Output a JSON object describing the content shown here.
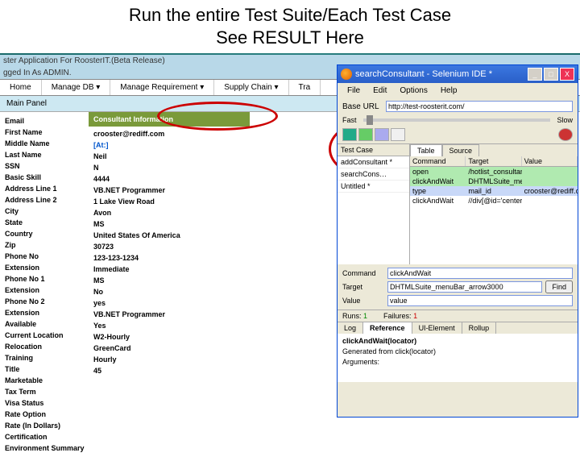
{
  "slide": {
    "title": "Run the entire Test Suite/Each Test Case",
    "subtitle": "See RESULT Here"
  },
  "app": {
    "header1": "ster Application For RoosterIT.(Beta Release)",
    "header2": "gged In As ADMIN.",
    "menu": [
      "Home",
      "Manage DB ▾",
      "Manage Requirement ▾",
      "Supply Chain ▾",
      "Tra"
    ],
    "panel_label": "Main Panel",
    "info_header": "Consultant Information",
    "fields": {
      "labels": [
        "Email",
        "",
        "First Name",
        "Middle Name",
        "Last Name",
        "SSN",
        "Basic Skill",
        "Address Line 1",
        "Address Line 2",
        "City",
        "State",
        "Country",
        "Zip",
        "Phone No",
        "Extension",
        "Phone No 1",
        "Extension",
        "Phone No 2",
        "Extension",
        "Available",
        "Current Location",
        "Relocation",
        "Training",
        "Title",
        "Marketable",
        "Tax Term",
        "Visa Status",
        "Rate Option",
        "Rate (In Dollars)",
        "Certification",
        "Environment Summary"
      ],
      "values": [
        "crooster@rediff.com",
        "[At:]",
        "Neil",
        "",
        "N",
        "4444",
        "VB.NET Programmer",
        "1 Lake View Road",
        "",
        "Avon",
        "MS",
        "United States Of America",
        "30723",
        "123-123-1234",
        "",
        "",
        "",
        "",
        "",
        "Immediate",
        "MS",
        "No",
        "yes",
        "VB.NET Programmer",
        "Yes",
        "W2-Hourly",
        "GreenCard",
        "Hourly",
        "45",
        "",
        ""
      ]
    }
  },
  "ide": {
    "title": "searchConsultant - Selenium IDE *",
    "menu": [
      "File",
      "Edit",
      "Options",
      "Help"
    ],
    "base_url_label": "Base URL",
    "base_url": "http://test-roosterit.com/",
    "speed_fast": "Fast",
    "speed_slow": "Slow",
    "testcase_label": "Test Case",
    "testcases": [
      "addConsultant *",
      "searchCons…",
      "Untitled *"
    ],
    "tabs": {
      "table": "Table",
      "source": "Source"
    },
    "thead": {
      "cmd": "Command",
      "tgt": "Target",
      "val": "Value"
    },
    "rows": [
      {
        "cmd": "open",
        "tgt": "/hotlist_consultant…",
        "val": "",
        "cls": "green"
      },
      {
        "cmd": "clickAndWait",
        "tgt": "DHTMLSuite_men…",
        "val": "",
        "cls": "green"
      },
      {
        "cmd": "type",
        "tgt": "mail_id",
        "val": "crooster@rediff.c…",
        "cls": "sel"
      },
      {
        "cmd": "clickAndWait",
        "tgt": "//div[@id='center'…",
        "val": "",
        "cls": ""
      }
    ],
    "detail": {
      "command_label": "Command",
      "command": "clickAndWait",
      "target_label": "Target",
      "target": "DHTMLSuite_menuBar_arrow3000",
      "find": "Find",
      "value_label": "Value",
      "value": "value"
    },
    "stats": {
      "runs_label": "Runs:",
      "runs": "1",
      "fail_label": "Failures:",
      "fail": "1"
    },
    "log_tabs": [
      "Log",
      "Reference",
      "UI-Element",
      "Rollup"
    ],
    "log": [
      "clickAndWait(locator)",
      "Generated from click(locator)",
      "Arguments:"
    ]
  }
}
